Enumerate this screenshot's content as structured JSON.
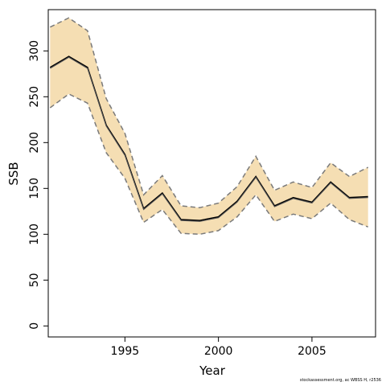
{
  "chart_data": {
    "type": "line",
    "title": "",
    "xlabel": "Year",
    "ylabel": "SSB",
    "xlim": [
      1990.9,
      2008.4
    ],
    "ylim": [
      -12,
      345
    ],
    "x_ticks": [
      1995,
      2000,
      2005
    ],
    "x_tick_labels": [
      "1995",
      "2000",
      "2005"
    ],
    "y_ticks": [
      0,
      50,
      100,
      150,
      200,
      250,
      300
    ],
    "y_tick_labels": [
      "0",
      "50",
      "100",
      "150",
      "200",
      "250",
      "300"
    ],
    "grid": false,
    "legend": "none",
    "x": [
      1991,
      1992,
      1993,
      1994,
      1995,
      1996,
      1997,
      1998,
      1999,
      2000,
      2001,
      2002,
      2003,
      2004,
      2005,
      2006,
      2007,
      2008
    ],
    "series": [
      {
        "values": [
          282,
          294,
          282,
          219,
          187,
          128,
          145,
          116,
          115,
          119,
          136,
          163,
          131,
          140,
          135,
          157,
          140,
          141
        ]
      },
      {
        "values": [
          281,
          293,
          281,
          218,
          186,
          127,
          144,
          115,
          114,
          118,
          135,
          162,
          130,
          139,
          134,
          156,
          139,
          140
        ]
      }
    ],
    "band": {
      "upper": [
        326,
        336,
        322,
        248,
        210,
        143,
        164,
        131,
        129,
        134,
        152,
        185,
        148,
        157,
        151,
        178,
        163,
        173
      ],
      "lower": [
        238,
        253,
        243,
        189,
        161,
        113,
        127,
        101,
        100,
        104,
        119,
        143,
        114,
        122,
        117,
        134,
        116,
        108
      ]
    },
    "colors": {
      "band_fill": "#f5deb3",
      "band_edge": "#7a7a7a",
      "line": "#000000",
      "line_secondary": "#555555"
    }
  },
  "footer": "stockassessment.org, ac WBSS H, r2536"
}
